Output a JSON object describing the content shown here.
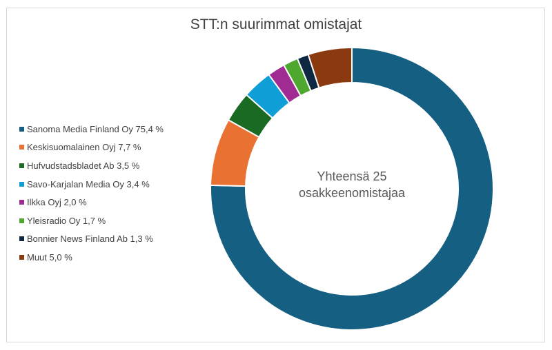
{
  "chart_data": {
    "type": "pie",
    "style": "donut",
    "title": "STT:n suurimmat omistajat",
    "center_label": [
      "Yhteensä 25",
      "osakkeenomistajaa"
    ],
    "legend_position": "left",
    "slices": [
      {
        "label": "Sanoma Media Finland Oy 75,4 %",
        "value": 75.4,
        "color": "#156082"
      },
      {
        "label": "Keskisuomalainen Oyj 7,7 %",
        "value": 7.7,
        "color": "#E97132"
      },
      {
        "label": "Hufvudstadsbladet Ab 3,5 %",
        "value": 3.5,
        "color": "#196B24"
      },
      {
        "label": "Savo-Karjalan Media Oy 3,4 %",
        "value": 3.4,
        "color": "#0F9ED5"
      },
      {
        "label": "Ilkka Oyj 2,0 %",
        "value": 2.0,
        "color": "#A02B93"
      },
      {
        "label": "Yleisradio Oy 1,7 %",
        "value": 1.7,
        "color": "#4EA72E"
      },
      {
        "label": "Bonnier News Finland Ab 1,3 %",
        "value": 1.3,
        "color": "#0E2841"
      },
      {
        "label": "Muut 5,0 %",
        "value": 5.0,
        "color": "#8B3A0F"
      }
    ]
  }
}
